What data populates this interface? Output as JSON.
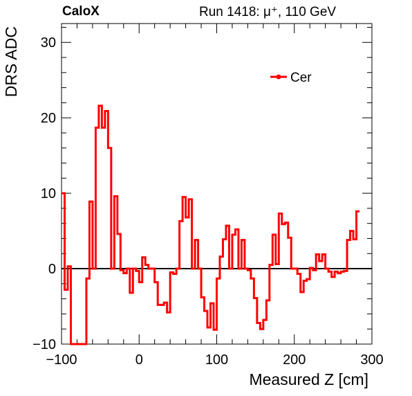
{
  "header": {
    "brand": "CaloX",
    "run_info": "Run 1418:   μ⁺, 110 GeV"
  },
  "chart_data": {
    "type": "line",
    "style": "step-histogram",
    "xlabel": "Measured Z [cm]",
    "ylabel": "DRS ADC",
    "xlim": [
      -100,
      300
    ],
    "ylim": [
      -10,
      32.5
    ],
    "xticks": [
      -100,
      0,
      100,
      200,
      300
    ],
    "yticks": [
      -10,
      0,
      10,
      20,
      30
    ],
    "grid": false,
    "zero_line": true,
    "legend_position": "top-right",
    "color": "#ff0000",
    "series": [
      {
        "name": "Cer",
        "bin_width": 4,
        "x_start": -100,
        "values": [
          10,
          -2.8,
          0.3,
          -10,
          -10,
          -10,
          -10,
          -10,
          -1.3,
          8.9,
          0,
          18.7,
          21.6,
          18.7,
          20.9,
          16,
          0,
          9.6,
          4.6,
          -0.2,
          -0.6,
          0,
          -3.2,
          0,
          -0.3,
          -1.8,
          1.5,
          0.5,
          0,
          0,
          -1.8,
          -4.8,
          -4.8,
          -4.5,
          -5.8,
          -0.5,
          -0.7,
          0,
          6.3,
          9.5,
          6.8,
          9.2,
          0,
          3.8,
          0,
          -3.8,
          -5.6,
          -7.8,
          -4.6,
          -8.1,
          -1.3,
          1.6,
          3.9,
          5.7,
          0,
          4.5,
          5.2,
          0,
          3.8,
          0,
          -0.2,
          -1.3,
          -3.9,
          -7.2,
          -8,
          -6.8,
          -4.2,
          0.5,
          4.5,
          0.6,
          7.3,
          5.9,
          6.1,
          4.1,
          0,
          0,
          -0.7,
          -3.1,
          -1.6,
          -1.4,
          0.1,
          -0.2,
          1.9,
          1,
          1.9,
          0,
          -0.4,
          -1.1,
          -0.4,
          -0.6,
          -0.4,
          -0.3,
          3.8,
          5,
          3.9,
          7.6
        ]
      }
    ]
  }
}
